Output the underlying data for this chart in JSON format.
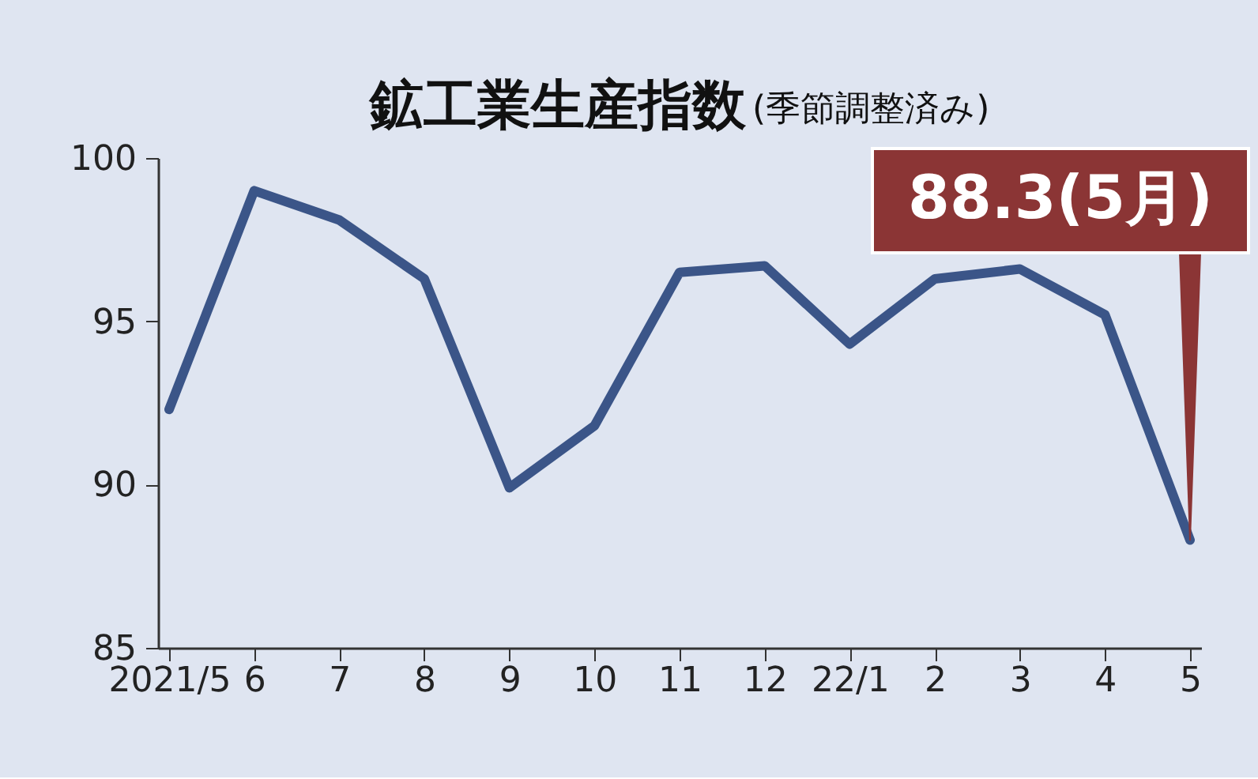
{
  "chart_data": {
    "type": "line",
    "title": "鉱工業生産指数",
    "subtitle": "(季節調整済み)",
    "categories": [
      "2021/5",
      "6",
      "7",
      "8",
      "9",
      "10",
      "11",
      "12",
      "22/1",
      "2",
      "3",
      "4",
      "5"
    ],
    "series": [
      {
        "color": "#3b5588",
        "values": [
          92.3,
          99.0,
          98.1,
          96.3,
          89.9,
          91.8,
          96.5,
          96.7,
          94.3,
          96.3,
          96.6,
          95.2,
          88.3
        ]
      }
    ],
    "ylim": [
      85,
      100
    ],
    "yticks": [
      85,
      90,
      95,
      100
    ],
    "annotations": [
      {
        "text": "88.3(5月)",
        "x": "5",
        "y": 88.3
      }
    ]
  }
}
